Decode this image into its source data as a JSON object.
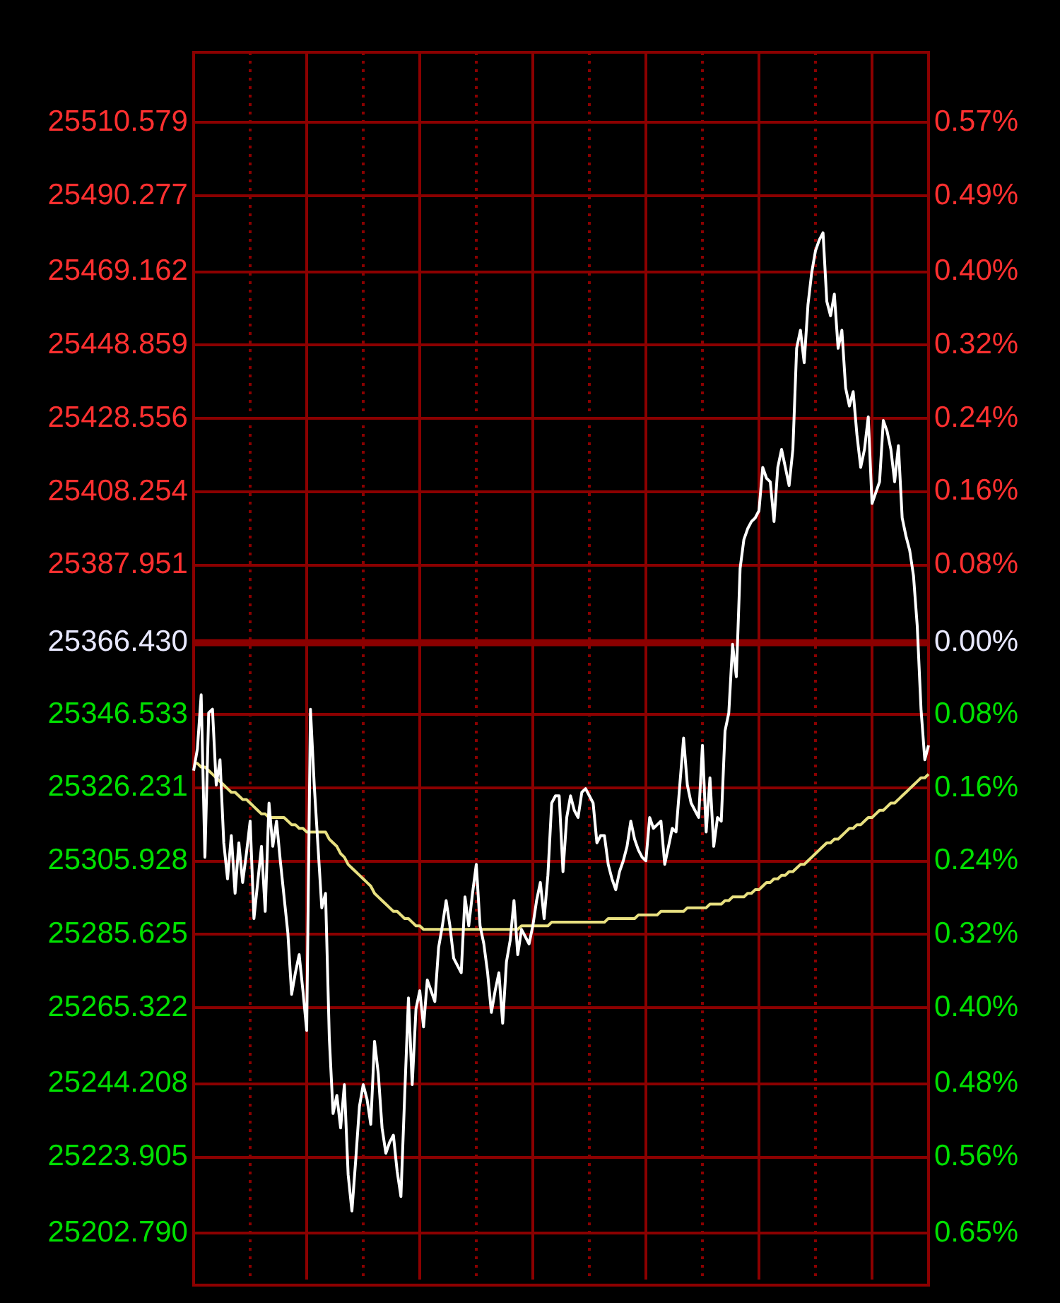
{
  "chart_data": {
    "type": "line",
    "grid": true,
    "legend": false,
    "marker": "none",
    "line_style": "solid",
    "categories": [
      null,
      null,
      null,
      null,
      null,
      null,
      null,
      null,
      null,
      null,
      null,
      null,
      null,
      null,
      null,
      null,
      null,
      null,
      null,
      null,
      null,
      null,
      null,
      null,
      null,
      null,
      null,
      null,
      null,
      null,
      null,
      null,
      null,
      null,
      null,
      null,
      null,
      null,
      null,
      null,
      null,
      null,
      null,
      null,
      null,
      null,
      null,
      null,
      null,
      null,
      null,
      null,
      null,
      null,
      null,
      null,
      null,
      null,
      null,
      null,
      null,
      null,
      null,
      null,
      null,
      null,
      null,
      null,
      null,
      null,
      null,
      null,
      null,
      null,
      null,
      null,
      null,
      null,
      null,
      null,
      null,
      null,
      null,
      null,
      null,
      null,
      null,
      null,
      null,
      null,
      null,
      null,
      null,
      null,
      null,
      null,
      null,
      null,
      null,
      null,
      null,
      null,
      null,
      null,
      null,
      null,
      null,
      null,
      null,
      null,
      null,
      null,
      null,
      null,
      null,
      null,
      null,
      null,
      null,
      null,
      null,
      null,
      null,
      null,
      null,
      null,
      null,
      null,
      null,
      null,
      null,
      null,
      null,
      null,
      null,
      null,
      null,
      null,
      null,
      null,
      null,
      null,
      null,
      null,
      null,
      null,
      null,
      null,
      null,
      null,
      null,
      null,
      null,
      null,
      null,
      null,
      null,
      null,
      null,
      null,
      null,
      null,
      null,
      null,
      null,
      null,
      null,
      null,
      null,
      null,
      null,
      null,
      null,
      null,
      null,
      null,
      null,
      null,
      null,
      null,
      null,
      null,
      null,
      null,
      null,
      null,
      null,
      null,
      null,
      null,
      null,
      null,
      null,
      null,
      null,
      null
    ],
    "ylim": [
      25190,
      25530
    ],
    "yticks": [
      25510.579,
      25490.277,
      25469.162,
      25448.859,
      25428.556,
      25408.254,
      25387.951,
      {
        "value": 25366.43,
        "label": "25366.430"
      },
      25346.533,
      25326.231,
      25305.928,
      25285.625,
      25265.322,
      25244.208,
      25223.905,
      {
        "value": 25202.79,
        "label": "25202.790"
      }
    ],
    "y2lim": [
      -0.6955,
      0.6448
    ],
    "y2ticks": [
      {
        "value": 0.5683,
        "label": "0.57%"
      },
      {
        "value": 0.4882,
        "label": "0.49%"
      },
      {
        "value": 0.405,
        "label": "0.40%"
      },
      {
        "value": 0.325,
        "label": "0.32%"
      },
      {
        "value": 0.2449,
        "label": "0.24%"
      },
      {
        "value": 0.1649,
        "label": "0.16%"
      },
      {
        "value": 0.0848,
        "label": "0.08%"
      },
      {
        "value": 0,
        "label": "0.00%"
      },
      {
        "value": -0.0784,
        "label": "0.08%"
      },
      {
        "value": -0.1585,
        "label": "0.16%"
      },
      {
        "value": -0.2385,
        "label": "0.24%"
      },
      {
        "value": -0.3186,
        "label": "0.32%"
      },
      {
        "value": -0.3986,
        "label": "0.40%"
      },
      {
        "value": -0.4818,
        "label": "0.48%"
      },
      {
        "value": -0.5619,
        "label": "0.56%"
      },
      {
        "value": -0.6451,
        "label": "0.65%"
      }
    ],
    "ref_lines": [
      {
        "axis": "y",
        "value": 25366.43,
        "color": "#8b0000"
      }
    ],
    "series": [
      {
        "color": "#ffffff",
        "values": [
          25331,
          25337,
          25352,
          25307,
          25347,
          25348,
          25327,
          25334,
          25311,
          25301,
          25313,
          25297,
          25311,
          25300,
          25308,
          25317,
          25290,
          25300,
          25310,
          25292,
          25322,
          25310,
          25317,
          25306,
          25296,
          25286,
          25269,
          25275,
          25280,
          25270,
          25259,
          25348,
          25327,
          25310,
          25293,
          25297,
          25257,
          25236,
          25241,
          25232,
          25244,
          25219,
          25209,
          25223,
          25238,
          25244,
          25240,
          25233,
          25256,
          25247,
          25232,
          25225,
          25228,
          25230,
          25220,
          25213,
          25241,
          25268,
          25244,
          25265,
          25270,
          25260,
          25273,
          25270,
          25267,
          25282,
          25288,
          25295,
          25288,
          25279,
          25277,
          25275,
          25296,
          25288,
          25297,
          25305,
          25288,
          25283,
          25275,
          25264,
          25270,
          25275,
          25261,
          25278,
          25284,
          25295,
          25280,
          25287,
          25285,
          25283,
          25288,
          25295,
          25300,
          25290,
          25302,
          25322,
          25324,
          25324,
          25303,
          25318,
          25324,
          25320,
          25318,
          25325,
          25326,
          25324,
          25322,
          25311,
          25313,
          25313,
          25305,
          25301,
          25298,
          25303,
          25306,
          25310,
          25317,
          25312,
          25309,
          25307,
          25306,
          25318,
          25315,
          25316,
          25317,
          25305,
          25310,
          25315,
          25314,
          25327,
          25340,
          25327,
          25322,
          25320,
          25318,
          25338,
          25314,
          25329,
          25310,
          25318,
          25317,
          25342,
          25347,
          25366,
          25357,
          25387,
          25395,
          25398,
          25400,
          25401,
          25403,
          25415,
          25412,
          25411,
          25400,
          25415,
          25420,
          25415,
          25410,
          25420,
          25448,
          25453,
          25444,
          25460,
          25469,
          25475,
          25478,
          25480,
          25461,
          25457,
          25463,
          25448,
          25453,
          25437,
          25432,
          25436,
          25424,
          25415,
          25420,
          25429,
          25405,
          25408,
          25411,
          25428,
          25425,
          25420,
          25411,
          25421,
          25401,
          25396,
          25392,
          25385,
          25371,
          25348,
          25334,
          25338
        ]
      },
      {
        "color": "#e8e080",
        "values": [
          25333,
          25333,
          25332,
          25332,
          25331,
          25330,
          25329,
          25328,
          25327,
          25326,
          25325,
          25325,
          25324,
          25323,
          25323,
          25322,
          25321,
          25320,
          25319,
          25319,
          25318,
          25318,
          25318,
          25318,
          25318,
          25317,
          25316,
          25316,
          25315,
          25315,
          25314,
          25314,
          25314,
          25314,
          25314,
          25314,
          25312,
          25311,
          25310,
          25308,
          25307,
          25305,
          25304,
          25303,
          25302,
          25301,
          25300,
          25299,
          25297,
          25296,
          25295,
          25294,
          25293,
          25292,
          25292,
          25291,
          25290,
          25290,
          25289,
          25288,
          25288,
          25287,
          25287,
          25287,
          25287,
          25287,
          25287,
          25287,
          25287,
          25287,
          25287,
          25287,
          25287,
          25287,
          25287,
          25287,
          25287,
          25287,
          25287,
          25287,
          25287,
          25287,
          25287,
          25287,
          25287,
          25287,
          25287,
          25288,
          25288,
          25288,
          25288,
          25288,
          25288,
          25288,
          25288,
          25289,
          25289,
          25289,
          25289,
          25289,
          25289,
          25289,
          25289,
          25289,
          25289,
          25289,
          25289,
          25289,
          25289,
          25289,
          25290,
          25290,
          25290,
          25290,
          25290,
          25290,
          25290,
          25290,
          25291,
          25291,
          25291,
          25291,
          25291,
          25291,
          25292,
          25292,
          25292,
          25292,
          25292,
          25292,
          25292,
          25293,
          25293,
          25293,
          25293,
          25293,
          25293,
          25294,
          25294,
          25294,
          25294,
          25295,
          25295,
          25296,
          25296,
          25296,
          25296,
          25297,
          25297,
          25298,
          25298,
          25299,
          25300,
          25300,
          25301,
          25301,
          25302,
          25302,
          25303,
          25303,
          25304,
          25305,
          25305,
          25306,
          25307,
          25308,
          25309,
          25310,
          25311,
          25311,
          25312,
          25312,
          25313,
          25314,
          25315,
          25315,
          25316,
          25316,
          25317,
          25318,
          25318,
          25319,
          25320,
          25320,
          25321,
          25322,
          25322,
          25323,
          25324,
          25325,
          25326,
          25327,
          25328,
          25329,
          25329,
          25330
        ]
      }
    ]
  }
}
